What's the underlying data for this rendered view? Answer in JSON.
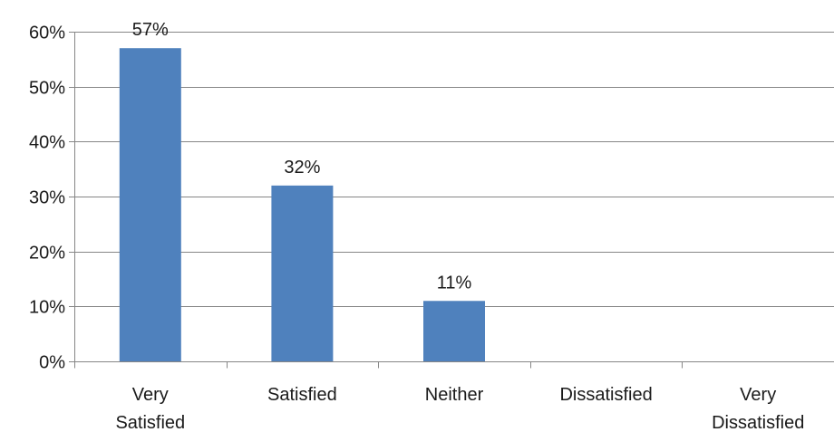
{
  "chart_data": {
    "type": "bar",
    "categories": [
      [
        "Very",
        "Satisfied"
      ],
      [
        "Satisfied"
      ],
      [
        "Neither"
      ],
      [
        "Dissatisfied"
      ],
      [
        "Very",
        "Dissatisfied"
      ]
    ],
    "values": [
      57,
      32,
      11,
      0,
      0
    ],
    "data_labels": [
      "57%",
      "32%",
      "11%",
      "",
      ""
    ],
    "ylim": [
      0,
      60
    ],
    "yticks": [
      0,
      10,
      20,
      30,
      40,
      50,
      60
    ],
    "ytick_labels": [
      "0%",
      "10%",
      "20%",
      "30%",
      "40%",
      "50%",
      "60%"
    ],
    "title": "",
    "xlabel": "",
    "ylabel": "",
    "grid": true,
    "legend": "none",
    "bar_color": "#4f81bd",
    "grid_color": "#868686",
    "axis_color": "#868686"
  }
}
